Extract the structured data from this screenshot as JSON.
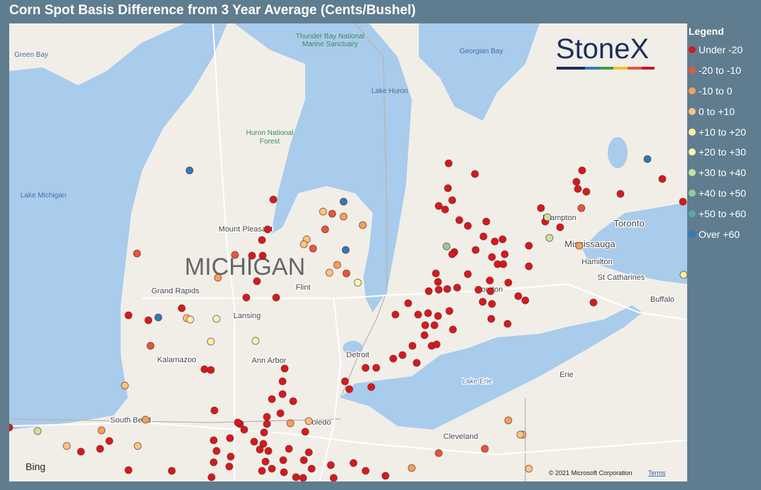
{
  "title": "Corn Spot Basis Difference from 3 Year Average (Cents/Bushel)",
  "legend": {
    "title": "Legend",
    "items": [
      {
        "label": "Under -20",
        "color": "#d7191c"
      },
      {
        "label": "-20 to -10",
        "color": "#e8553a"
      },
      {
        "label": "-10 to 0",
        "color": "#f4a05a"
      },
      {
        "label": "0 to +10",
        "color": "#fdc47d"
      },
      {
        "label": "+10 to +20",
        "color": "#fdeea0"
      },
      {
        "label": "+20 to +30",
        "color": "#f3f7b8"
      },
      {
        "label": "+30 to +40",
        "color": "#c8e6a0"
      },
      {
        "label": "+40 to +50",
        "color": "#8fcf9a"
      },
      {
        "label": "+50 to +60",
        "color": "#5aa6a8"
      },
      {
        "label": "Over +60",
        "color": "#2b7bba"
      }
    ]
  },
  "logo": "StoneX",
  "map_labels": [
    "MICHIGAN",
    "Lake Michigan",
    "Lake Huron",
    "Georgian Bay",
    "Green Bay",
    "Thunder Bay National Marine Sanctuary",
    "Huron National Forest",
    "Mount Pleasant",
    "Grand Rapids",
    "Lansing",
    "Flint",
    "Kalamazoo",
    "Ann Arbor",
    "Detroit",
    "Toledo",
    "South Bend",
    "Cleveland",
    "Erie",
    "Lake Erie",
    "London",
    "Hamilton",
    "St Catharines",
    "Buffalo",
    "Toronto",
    "Mississauga",
    "Brampton"
  ],
  "attribution": {
    "provider": "Bing",
    "copyright": "© 2021 Microsoft Corporation",
    "terms": "Terms"
  }
}
